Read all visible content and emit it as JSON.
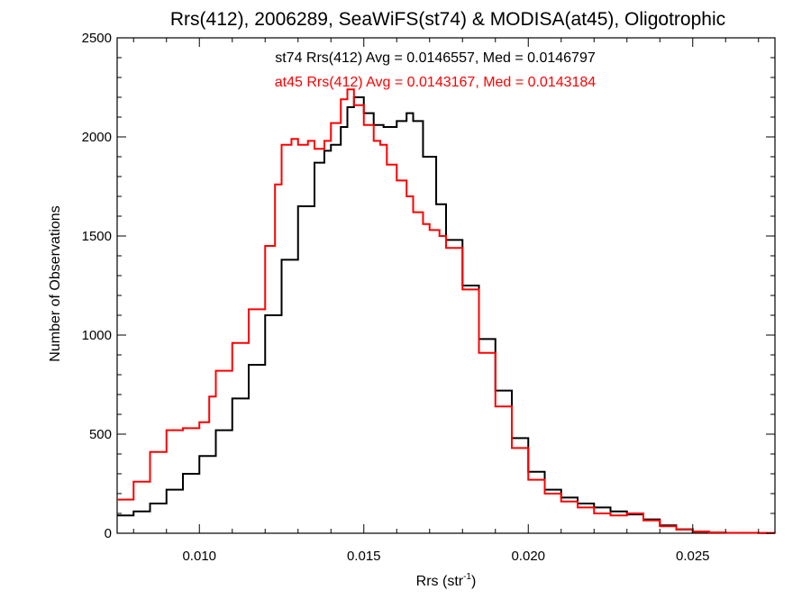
{
  "chart_data": {
    "type": "histogram-step",
    "title": "Rrs(412), 2006289, SeaWiFS(st74) & MODISA(at45), Oligotrophic",
    "xlabel": "Rrs (str",
    "xlabel_sup": "-1",
    "xlabel_end": ")",
    "ylabel": "Number of Observations",
    "xlim": [
      0.0075,
      0.0275
    ],
    "ylim": [
      0,
      2500
    ],
    "x_ticks": [
      0.01,
      0.015,
      0.02,
      0.025
    ],
    "x_tick_labels": [
      "0.010",
      "0.015",
      "0.020",
      "0.025"
    ],
    "y_ticks": [
      0,
      500,
      1000,
      1500,
      2000,
      2500
    ],
    "y_tick_labels": [
      "0",
      "500",
      "1000",
      "1500",
      "2000",
      "2500"
    ],
    "annotations": [
      {
        "text": "st74 Rrs(412) Avg = 0.0146557, Med = 0.0146797",
        "color": "#000000"
      },
      {
        "text": "at45 Rrs(412) Avg = 0.0143167, Med = 0.0143184",
        "color": "#ff0000"
      }
    ],
    "series": [
      {
        "color": "#000000",
        "points": [
          [
            0.0075,
            90
          ],
          [
            0.008,
            110
          ],
          [
            0.0085,
            150
          ],
          [
            0.009,
            220
          ],
          [
            0.0095,
            300
          ],
          [
            0.01,
            390
          ],
          [
            0.0105,
            520
          ],
          [
            0.011,
            680
          ],
          [
            0.0115,
            850
          ],
          [
            0.012,
            1100
          ],
          [
            0.0125,
            1380
          ],
          [
            0.013,
            1650
          ],
          [
            0.0135,
            1870
          ],
          [
            0.0138,
            1930
          ],
          [
            0.014,
            1960
          ],
          [
            0.0143,
            2050
          ],
          [
            0.0145,
            2150
          ],
          [
            0.0147,
            2200
          ],
          [
            0.015,
            2120
          ],
          [
            0.0153,
            2060
          ],
          [
            0.0156,
            2050
          ],
          [
            0.016,
            2080
          ],
          [
            0.0163,
            2120
          ],
          [
            0.0165,
            2080
          ],
          [
            0.0168,
            1900
          ],
          [
            0.0172,
            1660
          ],
          [
            0.0175,
            1480
          ],
          [
            0.018,
            1250
          ],
          [
            0.0185,
            980
          ],
          [
            0.019,
            720
          ],
          [
            0.0195,
            480
          ],
          [
            0.02,
            310
          ],
          [
            0.0205,
            220
          ],
          [
            0.021,
            180
          ],
          [
            0.0215,
            150
          ],
          [
            0.022,
            130
          ],
          [
            0.0225,
            110
          ],
          [
            0.023,
            95
          ],
          [
            0.0235,
            70
          ],
          [
            0.024,
            40
          ],
          [
            0.0245,
            20
          ],
          [
            0.025,
            8
          ],
          [
            0.0255,
            3
          ],
          [
            0.026,
            2
          ],
          [
            0.027,
            1
          ],
          [
            0.0275,
            0
          ]
        ]
      },
      {
        "color": "#ff0000",
        "points": [
          [
            0.0075,
            170
          ],
          [
            0.008,
            260
          ],
          [
            0.0085,
            410
          ],
          [
            0.009,
            520
          ],
          [
            0.0095,
            530
          ],
          [
            0.01,
            560
          ],
          [
            0.0103,
            690
          ],
          [
            0.0105,
            820
          ],
          [
            0.011,
            960
          ],
          [
            0.0115,
            1130
          ],
          [
            0.012,
            1450
          ],
          [
            0.0123,
            1760
          ],
          [
            0.0125,
            1960
          ],
          [
            0.0128,
            1990
          ],
          [
            0.013,
            1960
          ],
          [
            0.0133,
            1980
          ],
          [
            0.0135,
            1940
          ],
          [
            0.0138,
            1980
          ],
          [
            0.014,
            2070
          ],
          [
            0.0143,
            2190
          ],
          [
            0.0145,
            2240
          ],
          [
            0.0147,
            2160
          ],
          [
            0.015,
            2060
          ],
          [
            0.0153,
            1980
          ],
          [
            0.0155,
            1960
          ],
          [
            0.0157,
            1860
          ],
          [
            0.016,
            1780
          ],
          [
            0.0163,
            1700
          ],
          [
            0.0165,
            1620
          ],
          [
            0.0168,
            1560
          ],
          [
            0.017,
            1530
          ],
          [
            0.0173,
            1500
          ],
          [
            0.0175,
            1440
          ],
          [
            0.018,
            1230
          ],
          [
            0.0185,
            910
          ],
          [
            0.019,
            640
          ],
          [
            0.0195,
            430
          ],
          [
            0.02,
            270
          ],
          [
            0.0205,
            200
          ],
          [
            0.021,
            160
          ],
          [
            0.0215,
            130
          ],
          [
            0.022,
            100
          ],
          [
            0.0225,
            90
          ],
          [
            0.023,
            100
          ],
          [
            0.0235,
            65
          ],
          [
            0.024,
            35
          ],
          [
            0.0245,
            18
          ],
          [
            0.025,
            8
          ],
          [
            0.0255,
            4
          ],
          [
            0.026,
            2
          ],
          [
            0.027,
            1
          ],
          [
            0.0275,
            0
          ]
        ]
      }
    ]
  }
}
